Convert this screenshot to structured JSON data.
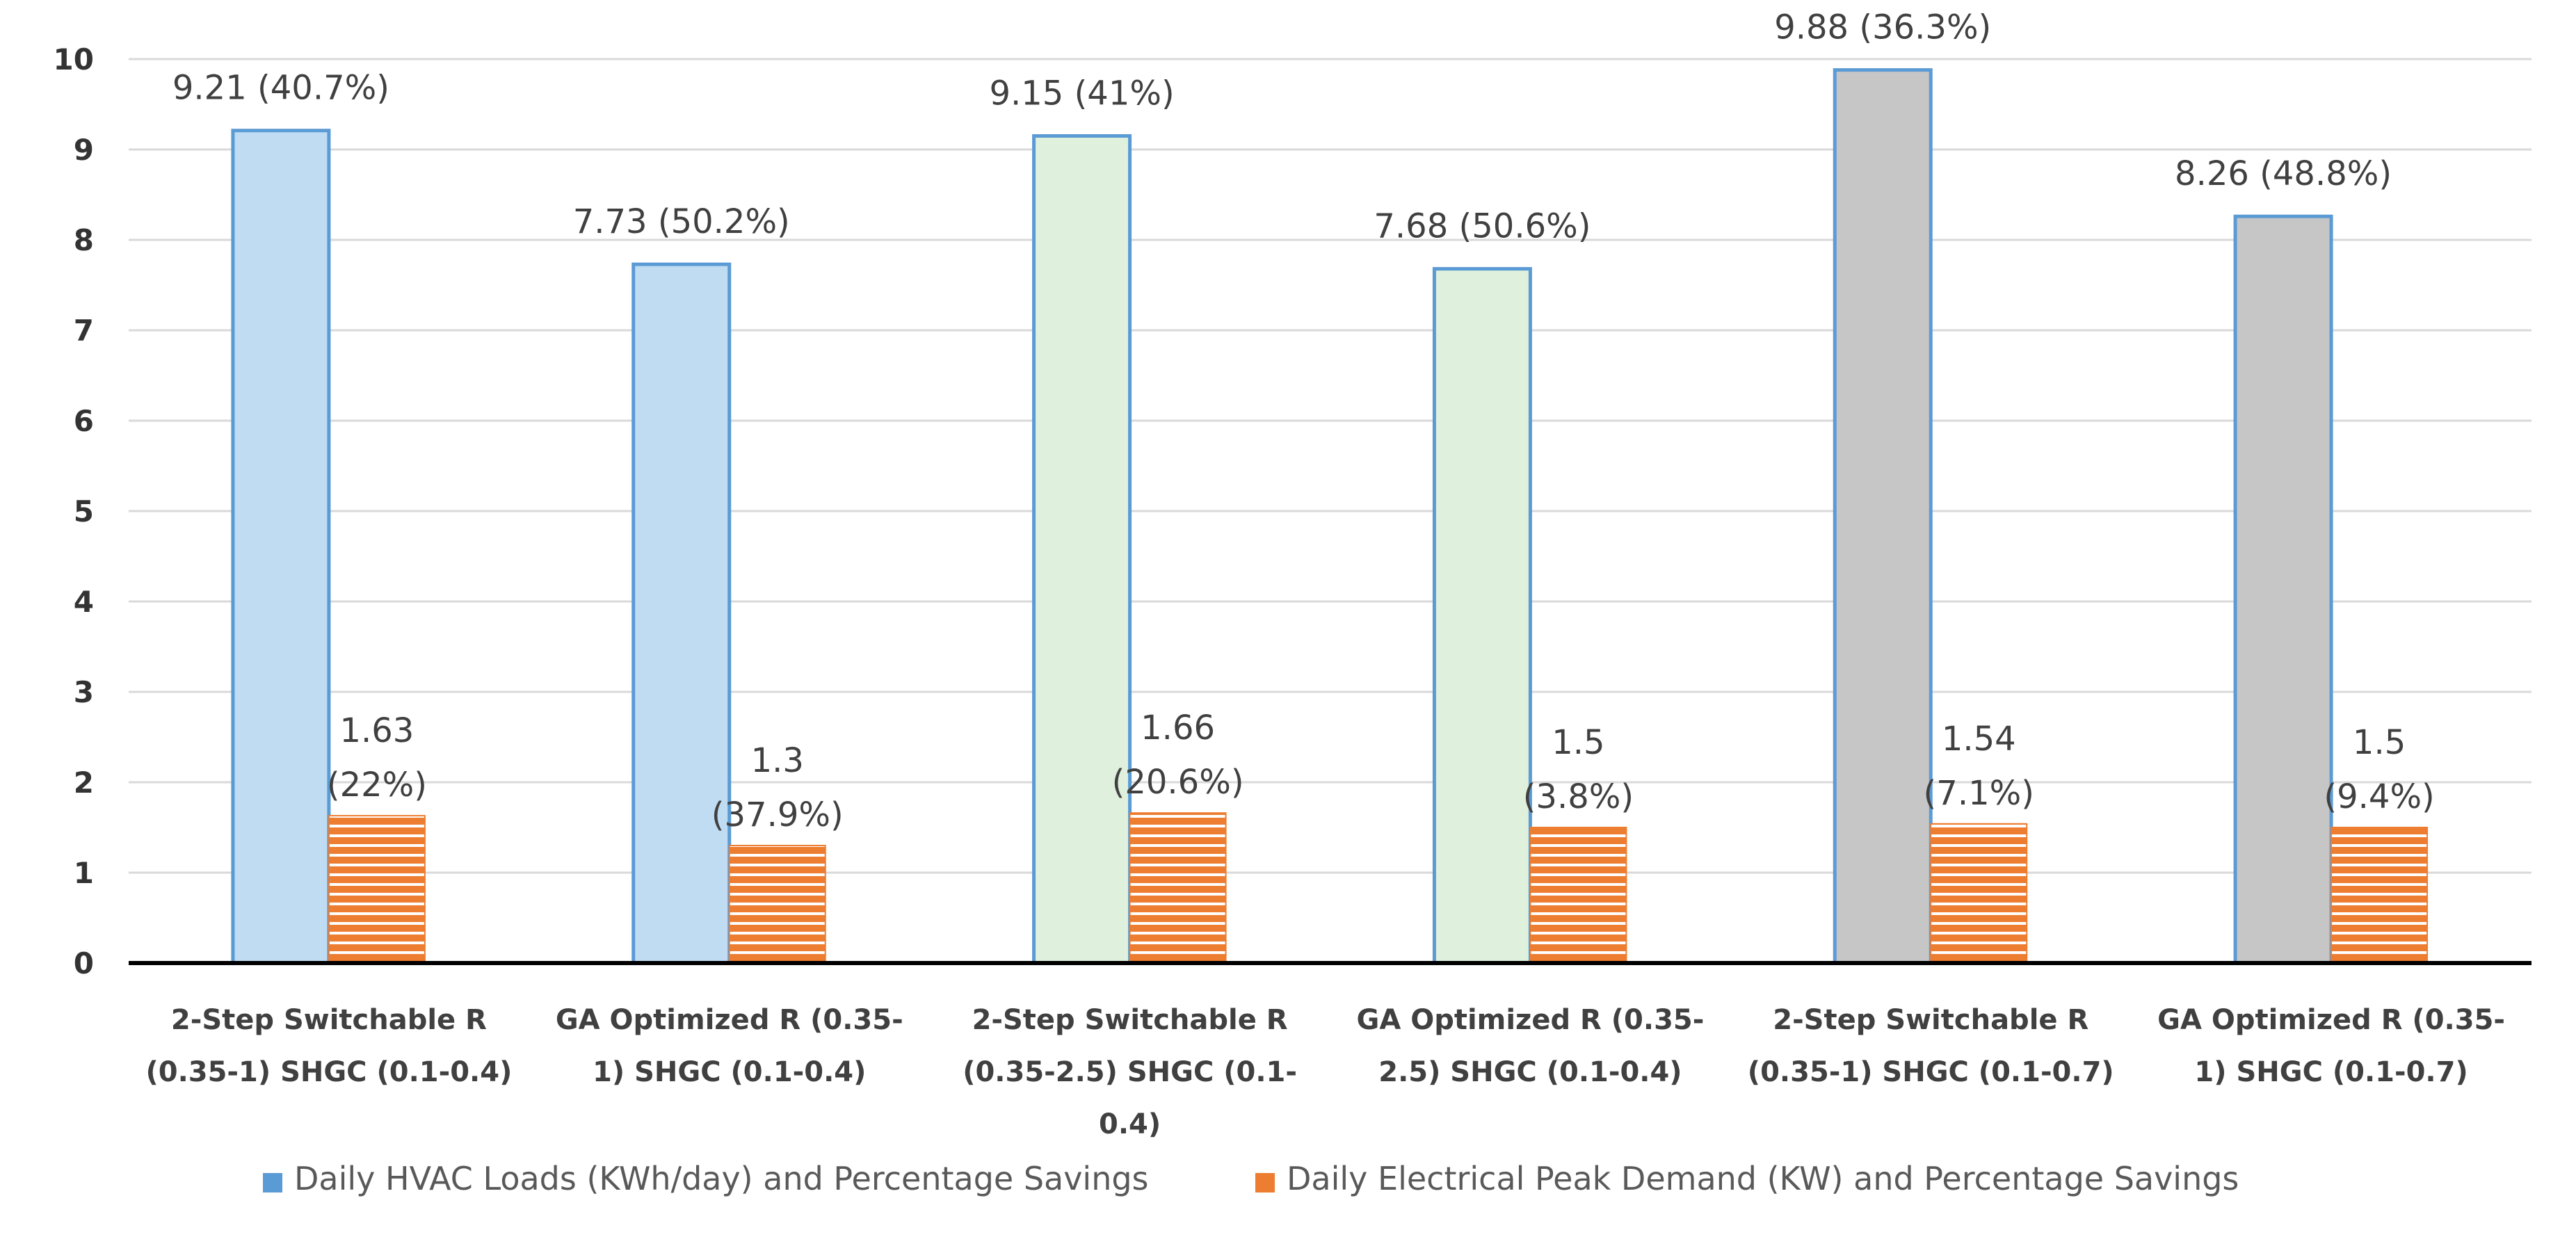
{
  "chart_data": {
    "type": "bar",
    "title": "",
    "xlabel": "",
    "ylabel": "",
    "ylim": [
      0,
      10
    ],
    "yticks": [
      0,
      1,
      2,
      3,
      4,
      5,
      6,
      7,
      8,
      9,
      10
    ],
    "grid": true,
    "legend_position": "bottom",
    "categories": [
      [
        "2-Step Switchable R",
        "(0.35-1) SHGC (0.1-0.4)"
      ],
      [
        "GA Optimized  R (0.35-",
        "1) SHGC (0.1-0.4)"
      ],
      [
        "2-Step Switchable R",
        "(0.35-2.5) SHGC (0.1-",
        "0.4)"
      ],
      [
        "GA Optimized  R (0.35-",
        "2.5) SHGC (0.1-0.4)"
      ],
      [
        "2-Step Switchable R",
        "(0.35-1) SHGC (0.1-0.7)"
      ],
      [
        "GA Optimized  R (0.35-",
        "1) SHGC (0.1-0.7)"
      ]
    ],
    "series": [
      {
        "name": "Daily HVAC Loads (KWh/day) and Percentage Savings",
        "values": [
          9.21,
          7.73,
          9.15,
          7.68,
          9.88,
          8.26
        ],
        "labels": [
          [
            "9.21 (40.7%)"
          ],
          [
            "7.73 (50.2%)"
          ],
          [
            "9.15 (41%)"
          ],
          [
            "7.68 (50.6%)"
          ],
          [
            "9.88 (36.3%)"
          ],
          [
            "8.26 (48.8%)"
          ]
        ],
        "bar_fills": [
          "#bfdcf2",
          "#bfdcf2",
          "#dff0dc",
          "#dff0dc",
          "#c6c6c6",
          "#c6c6c6"
        ],
        "bar_edges": [
          "#5b9bd5",
          "#5b9bd5",
          "#5b9bd5",
          "#5b9bd5",
          "#5b9bd5",
          "#5b9bd5"
        ],
        "legend_color": "#5b9bd5"
      },
      {
        "name": "Daily Electrical Peak Demand (KW) and Percentage Savings",
        "values": [
          1.63,
          1.3,
          1.66,
          1.5,
          1.54,
          1.5
        ],
        "labels": [
          [
            "1.63",
            "(22%)"
          ],
          [
            "1.3",
            "(37.9%)"
          ],
          [
            "1.66",
            "(20.6%)"
          ],
          [
            "1.5",
            "(3.8%)"
          ],
          [
            "1.54",
            "(7.1%)"
          ],
          [
            "1.5",
            "(9.4%)"
          ]
        ],
        "bar_fill": "#ed7d31",
        "stripe_color": "#ffffff",
        "legend_color": "#ed7d31"
      }
    ]
  }
}
